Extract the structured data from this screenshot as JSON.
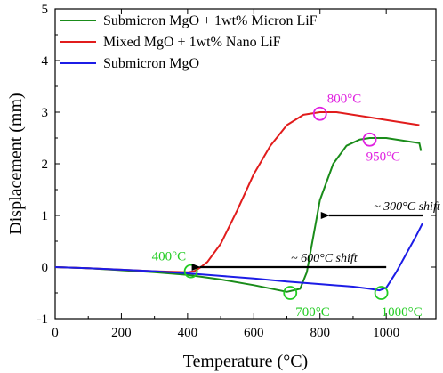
{
  "chart_data": {
    "type": "line",
    "xlabel": "Temperature (°C)",
    "ylabel": "Displacement (mm)",
    "xlim": [
      0,
      1150
    ],
    "ylim": [
      -1,
      5
    ],
    "xticks": [
      0,
      200,
      400,
      600,
      800,
      1000
    ],
    "yticks": [
      -1,
      0,
      1,
      2,
      3,
      4,
      5
    ],
    "grid": false,
    "legend_position": "top-left",
    "series": [
      {
        "name": "Submicron MgO + 1wt% Micron LiF",
        "color": "#1a8c1a",
        "x": [
          0,
          100,
          200,
          300,
          400,
          500,
          600,
          700,
          740,
          760,
          780,
          800,
          840,
          880,
          920,
          950,
          1000,
          1050,
          1100,
          1105
        ],
        "y": [
          0,
          -0.02,
          -0.06,
          -0.1,
          -0.15,
          -0.24,
          -0.35,
          -0.48,
          -0.42,
          -0.1,
          0.6,
          1.3,
          2.0,
          2.35,
          2.47,
          2.5,
          2.5,
          2.45,
          2.4,
          2.25
        ]
      },
      {
        "name": "Mixed MgO + 1wt% Nano LiF",
        "color": "#e11c1c",
        "x": [
          0,
          100,
          200,
          300,
          400,
          420,
          440,
          460,
          500,
          550,
          600,
          650,
          700,
          750,
          800,
          850,
          900,
          950,
          1000,
          1050,
          1100
        ],
        "y": [
          0,
          -0.02,
          -0.05,
          -0.08,
          -0.1,
          -0.08,
          0.0,
          0.1,
          0.45,
          1.1,
          1.8,
          2.35,
          2.75,
          2.95,
          3.0,
          3.0,
          2.95,
          2.9,
          2.85,
          2.8,
          2.75
        ]
      },
      {
        "name": "Submicron MgO",
        "color": "#1c1ce6",
        "x": [
          0,
          100,
          200,
          300,
          400,
          500,
          600,
          700,
          800,
          900,
          950,
          980,
          1000,
          1030,
          1060,
          1090,
          1110
        ],
        "y": [
          0,
          -0.02,
          -0.05,
          -0.08,
          -0.12,
          -0.17,
          -0.22,
          -0.28,
          -0.33,
          -0.38,
          -0.42,
          -0.45,
          -0.4,
          -0.1,
          0.25,
          0.6,
          0.85
        ]
      }
    ],
    "annotations": [
      {
        "text": "800°C",
        "x": 800,
        "y": 2.97,
        "color": "#e020e0"
      },
      {
        "text": "950°C",
        "x": 950,
        "y": 2.47,
        "color": "#e020e0"
      },
      {
        "text": "400°C",
        "x": 410,
        "y": -0.08,
        "color": "#22cc22"
      },
      {
        "text": "700°C",
        "x": 710,
        "y": -0.5,
        "color": "#22cc22"
      },
      {
        "text": "1000°C",
        "x": 985,
        "y": -0.5,
        "color": "#22cc22"
      },
      {
        "text": "~ 300°C shift",
        "from_x": 1110,
        "to_x": 800,
        "y": 1.0
      },
      {
        "text": "~ 600°C shift",
        "from_x": 1000,
        "to_x": 410,
        "y": 0.0
      }
    ]
  }
}
